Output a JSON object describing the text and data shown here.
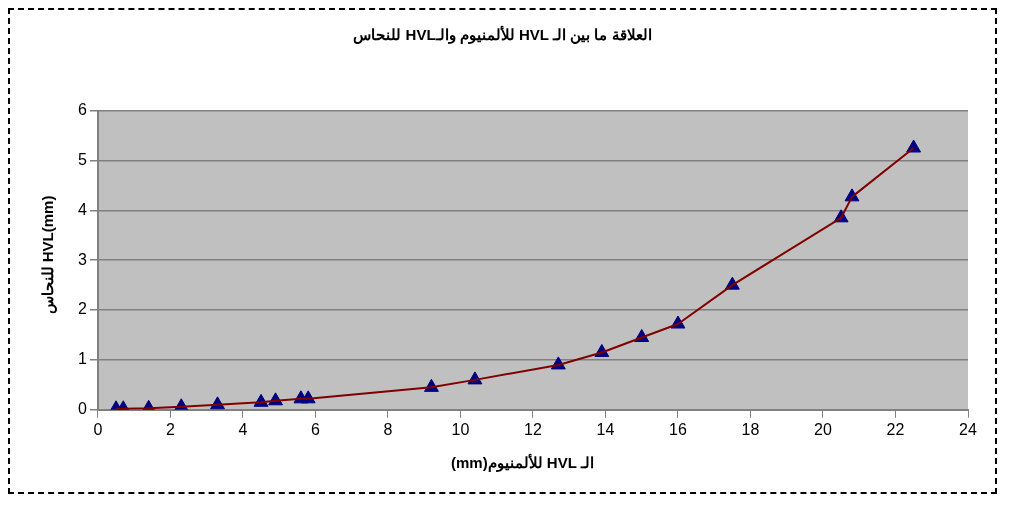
{
  "chart_data": {
    "type": "line",
    "title": "العلاقة ما بين الـ HVL للألمنيوم والـHVL للنحاس",
    "xlabel": "الـ HVL للألمنيوم(mm)",
    "ylabel": "(mm)HVL للنحاس",
    "x": [
      0.5,
      0.7,
      1.4,
      2.3,
      3.3,
      4.5,
      4.9,
      5.6,
      5.8,
      9.2,
      10.4,
      12.7,
      13.9,
      15.0,
      16.0,
      17.5,
      20.5,
      20.8,
      22.5
    ],
    "series": [
      {
        "type": "line",
        "color": "#800000",
        "marker": "none",
        "values": [
          0.02,
          0.02,
          0.03,
          0.06,
          0.1,
          0.15,
          0.18,
          0.22,
          0.22,
          0.45,
          0.6,
          0.9,
          1.15,
          1.45,
          1.72,
          2.5,
          3.85,
          4.27,
          5.25
        ]
      },
      {
        "type": "scatter",
        "color": "#000080",
        "marker": "triangle",
        "values": [
          0.02,
          0.02,
          0.03,
          0.06,
          0.1,
          0.15,
          0.18,
          0.22,
          0.22,
          0.45,
          0.6,
          0.9,
          1.15,
          1.45,
          1.72,
          2.5,
          3.85,
          4.27,
          5.25
        ]
      }
    ],
    "xlim": [
      0,
      24
    ],
    "xticks": [
      0,
      2,
      4,
      6,
      8,
      10,
      12,
      14,
      16,
      18,
      20,
      22,
      24
    ],
    "ylim": [
      0,
      6
    ],
    "yticks": [
      0,
      1,
      2,
      3,
      4,
      5,
      6
    ],
    "grid": "y",
    "legend": false
  }
}
